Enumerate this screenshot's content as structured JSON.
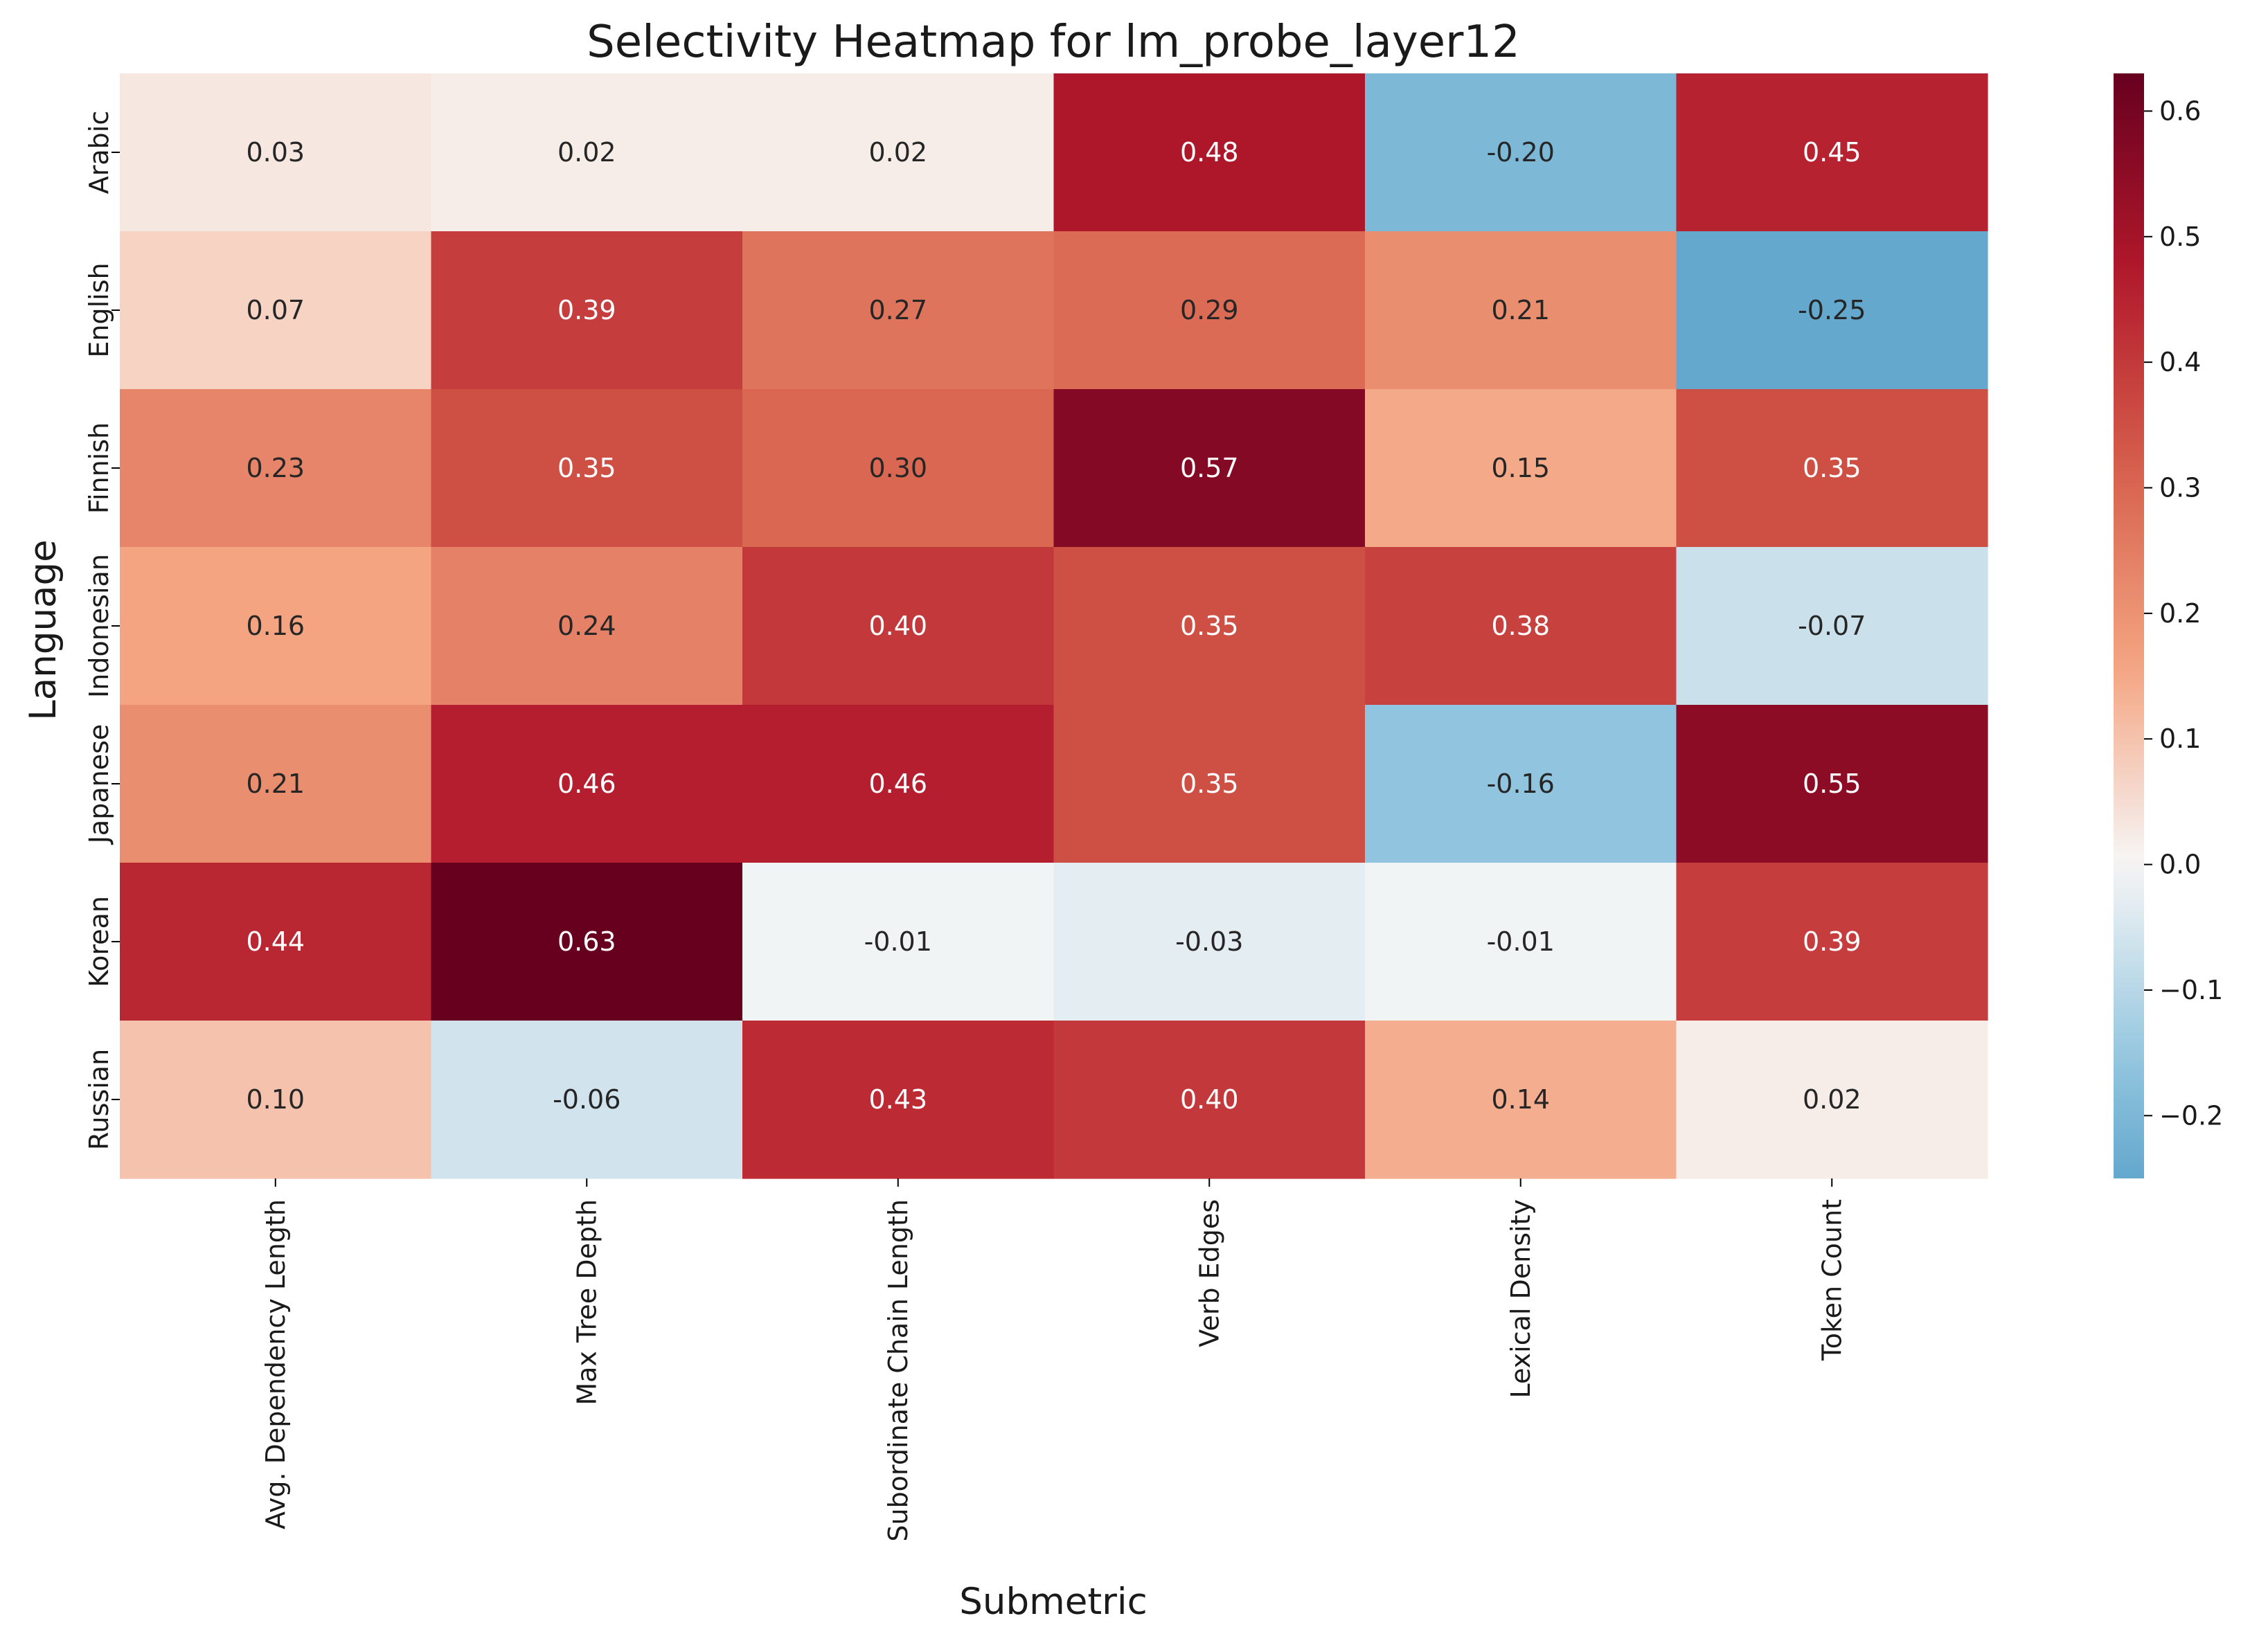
{
  "chart_data": {
    "type": "heatmap",
    "title": "Selectivity Heatmap for lm_probe_layer12",
    "xlabel": "Submetric",
    "ylabel": "Language",
    "columns": [
      "Avg. Dependency Length",
      "Max Tree Depth",
      "Subordinate Chain Length",
      "Verb Edges",
      "Lexical Density",
      "Token Count"
    ],
    "rows": [
      "Arabic",
      "English",
      "Finnish",
      "Indonesian",
      "Japanese",
      "Korean",
      "Russian"
    ],
    "values": [
      [
        0.03,
        0.02,
        0.02,
        0.48,
        -0.2,
        0.45
      ],
      [
        0.07,
        0.39,
        0.27,
        0.29,
        0.21,
        -0.25
      ],
      [
        0.23,
        0.35,
        0.3,
        0.57,
        0.15,
        0.35
      ],
      [
        0.16,
        0.24,
        0.4,
        0.35,
        0.38,
        -0.07
      ],
      [
        0.21,
        0.46,
        0.46,
        0.35,
        -0.16,
        0.55
      ],
      [
        0.44,
        0.63,
        -0.01,
        -0.03,
        -0.01,
        0.39
      ],
      [
        0.1,
        -0.06,
        0.43,
        0.4,
        0.14,
        0.02
      ]
    ],
    "value_labels": [
      [
        "0.03",
        "0.02",
        "0.02",
        "0.48",
        "-0.20",
        "0.45"
      ],
      [
        "0.07",
        "0.39",
        "0.27",
        "0.29",
        "0.21",
        "-0.25"
      ],
      [
        "0.23",
        "0.35",
        "0.30",
        "0.57",
        "0.15",
        "0.35"
      ],
      [
        "0.16",
        "0.24",
        "0.40",
        "0.35",
        "0.38",
        "-0.07"
      ],
      [
        "0.21",
        "0.46",
        "0.46",
        "0.35",
        "-0.16",
        "0.55"
      ],
      [
        "0.44",
        "0.63",
        "-0.01",
        "-0.03",
        "-0.01",
        "0.39"
      ],
      [
        "0.10",
        "-0.06",
        "0.43",
        "0.40",
        "0.14",
        "0.02"
      ]
    ],
    "colormap": "RdBu_r",
    "color_center": 0.0,
    "color_range": [
      -0.25,
      0.63
    ],
    "colorbar_ticks": [
      0.6,
      0.5,
      0.4,
      0.3,
      0.2,
      0.1,
      0.0,
      -0.1,
      -0.2
    ],
    "colorbar_tick_labels": [
      "0.6",
      "0.5",
      "0.4",
      "0.3",
      "0.2",
      "0.1",
      "0.0",
      "−0.1",
      "−0.2"
    ],
    "grid": false,
    "legend": "colorbar right"
  }
}
